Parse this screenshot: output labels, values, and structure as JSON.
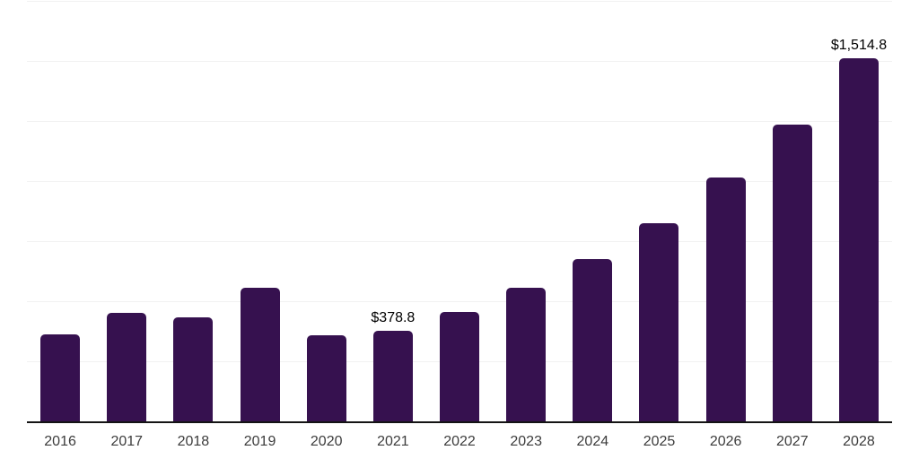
{
  "chart": {
    "background_color": "#ffffff",
    "bar_color": "#36114F",
    "grid_color": "#f2f2f2",
    "axis_color": "#141414",
    "tick_label_color": "#3c3c3c",
    "data_label_color": "#000000"
  },
  "chart_data": {
    "type": "bar",
    "categories": [
      "2016",
      "2017",
      "2018",
      "2019",
      "2020",
      "2021",
      "2022",
      "2023",
      "2024",
      "2025",
      "2026",
      "2027",
      "2028"
    ],
    "values": [
      366,
      455,
      436,
      559,
      361,
      378.8,
      460,
      560,
      681,
      829,
      1017,
      1237,
      1514.8
    ],
    "data_labels": [
      "",
      "",
      "",
      "",
      "",
      "$378.8",
      "",
      "",
      "",
      "",
      "",
      "",
      "$1,514.8"
    ],
    "title": "",
    "xlabel": "",
    "ylabel": "",
    "ylim": [
      0,
      1750
    ],
    "gridline_interval": 250,
    "grid": true,
    "legend": false,
    "y_tick_labels_visible": false
  }
}
